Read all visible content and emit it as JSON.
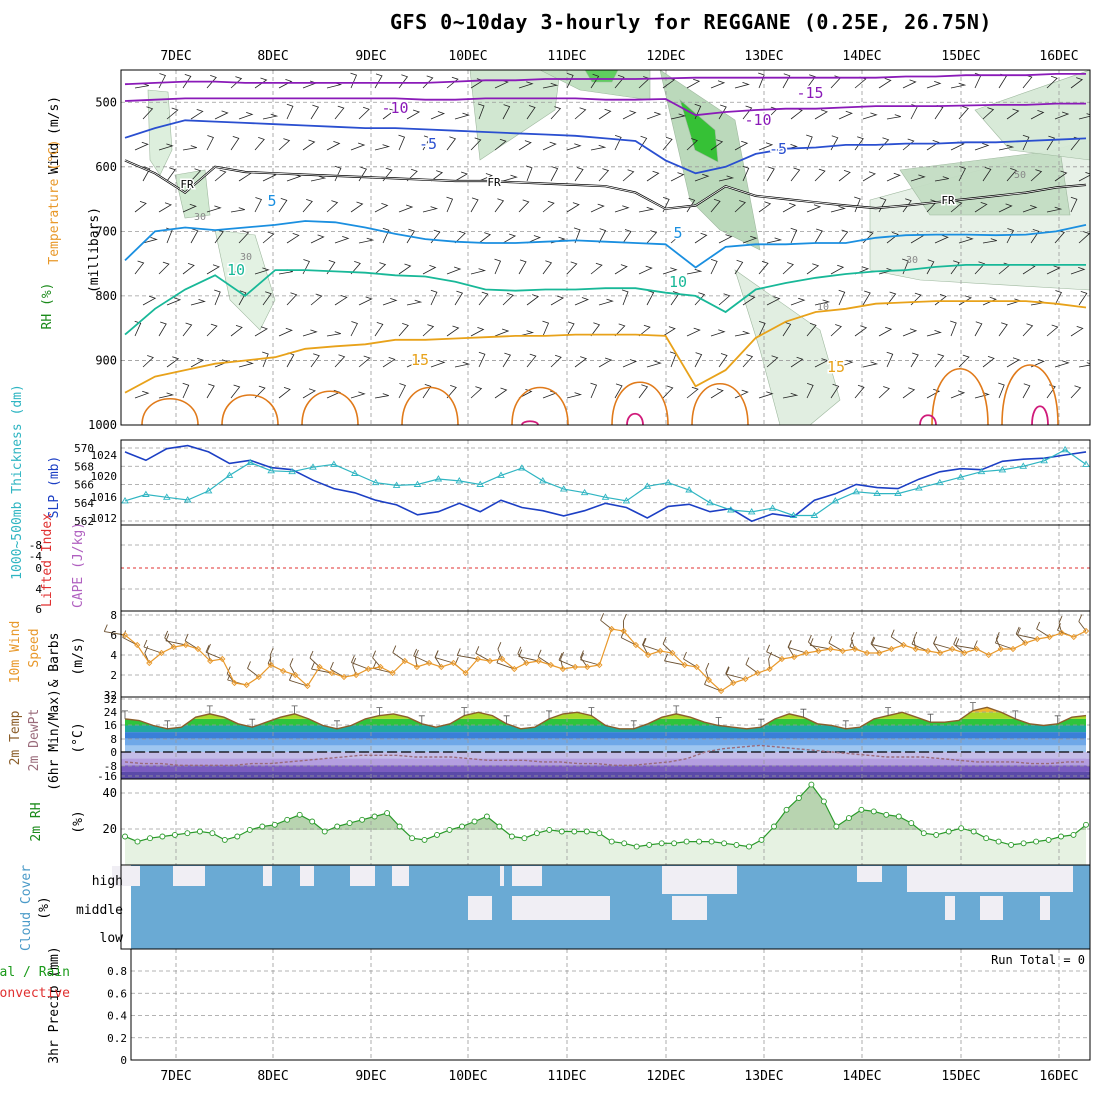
{
  "title": "GFS 0~10day 3-hourly for REGGANE (0.25E, 26.75N)",
  "dates": [
    "7DEC",
    "8DEC",
    "9DEC",
    "10DEC",
    "11DEC",
    "12DEC",
    "13DEC",
    "14DEC",
    "15DEC",
    "16DEC"
  ],
  "colors": {
    "slp": "#1c3fc4",
    "thick": "#2fb5c2",
    "wind": "#e8982a",
    "barb": "#6b5030",
    "t_warm": "#8b5e2a",
    "dewpt": "#9a6b7a",
    "rh": "#2a9a2a",
    "cloud": "#6aaad4",
    "cloud_gap": "#f0eef4",
    "frz": "#e03030"
  },
  "labels": {
    "p1_wind": "Wind (m/s)",
    "p1_temp": "Temperature (°C)",
    "p1_rh": "RH (%)",
    "p1_mb": "(millibars)",
    "p2_thick": "1000~500mb Thickness (dm)",
    "p2_slp": "SLP (mb)",
    "p3_li": "Lifted Index",
    "p3_cape": "CAPE (J/kg)",
    "p4_a": "10m Wind",
    "p4_b": "Speed",
    "p4_c": "& Barbs",
    "p4_unit": "(m/s)",
    "p5_a": "2m Temp",
    "p5_b": "2m DewPt",
    "p5_c": "(6hr Min/Max)",
    "p5_unit": "(°C)",
    "p6_a": "2m RH",
    "p6_unit": "(%)",
    "p7_a": "Cloud Cover",
    "p7_unit": "(%)",
    "p8_a": "3hr Precip (mm)",
    "p8_b": "Total / Rain",
    "p8_c": "Convective",
    "run_total": "Run Total = 0"
  },
  "chart_data": [
    {
      "type": "contour",
      "name": "upper-air-cross-section",
      "ylabel": "millibars",
      "y_ticks": [
        "500",
        "600",
        "700",
        "800",
        "900",
        "1000"
      ],
      "ylim": [
        450,
        1000
      ],
      "temperature_labels": [
        "-15",
        "-10",
        "-10",
        "-5",
        "-5",
        "FR",
        "FR",
        "FR",
        "5",
        "5",
        "10",
        "10",
        "15",
        "15"
      ],
      "rh_labels": [
        "30",
        "30",
        "30",
        "50",
        "10"
      ],
      "isotherms": [
        {
          "label": "-15",
          "p": [
            472,
            470,
            468,
            468,
            470,
            470,
            470,
            470,
            470,
            470,
            470,
            468,
            466,
            466,
            464,
            464,
            464,
            464,
            463,
            462,
            462,
            462,
            462,
            462,
            462,
            462,
            460,
            460,
            458,
            458,
            458,
            456,
            456
          ]
        },
        {
          "label": "-10",
          "p": [
            498,
            496,
            494,
            494,
            494,
            494,
            494,
            494,
            494,
            494,
            496,
            496,
            494,
            494,
            494,
            494,
            496,
            496,
            495,
            520,
            515,
            512,
            510,
            510,
            508,
            506,
            506,
            506,
            505,
            504,
            504,
            502,
            502
          ]
        },
        {
          "label": "-5",
          "p": [
            555,
            540,
            528,
            530,
            532,
            534,
            536,
            538,
            540,
            540,
            542,
            544,
            546,
            548,
            550,
            552,
            556,
            560,
            590,
            610,
            600,
            580,
            572,
            570,
            566,
            566,
            564,
            564,
            562,
            562,
            560,
            558,
            556
          ]
        },
        {
          "label": "FR",
          "p": [
            590,
            610,
            640,
            600,
            608,
            610,
            612,
            614,
            616,
            618,
            620,
            622,
            622,
            624,
            626,
            628,
            630,
            640,
            665,
            660,
            630,
            645,
            650,
            655,
            660,
            664,
            660,
            655,
            650,
            645,
            640,
            632,
            628
          ]
        },
        {
          "label": "5",
          "p": [
            745,
            700,
            694,
            698,
            694,
            690,
            684,
            686,
            694,
            704,
            712,
            716,
            718,
            718,
            716,
            714,
            716,
            718,
            720,
            756,
            724,
            720,
            720,
            718,
            718,
            710,
            706,
            705,
            705,
            706,
            705,
            700,
            690
          ]
        },
        {
          "label": "10",
          "p": [
            860,
            820,
            790,
            768,
            800,
            760,
            760,
            762,
            764,
            768,
            770,
            778,
            790,
            792,
            790,
            790,
            788,
            788,
            795,
            800,
            825,
            790,
            780,
            772,
            766,
            762,
            760,
            755,
            752,
            752,
            752,
            752,
            752
          ]
        },
        {
          "label": "15",
          "p": [
            950,
            925,
            915,
            905,
            900,
            895,
            882,
            878,
            875,
            868,
            868,
            866,
            864,
            862,
            862,
            860,
            860,
            860,
            862,
            940,
            915,
            865,
            840,
            825,
            820,
            812,
            810,
            808,
            808,
            808,
            808,
            812,
            818
          ]
        }
      ]
    },
    {
      "type": "line",
      "name": "slp-thickness",
      "y_ticks_left": [
        "570",
        "568",
        "566",
        "564",
        "562"
      ],
      "y_ticks_right": [
        "1024",
        "1020",
        "1016",
        "1012"
      ],
      "series": [
        {
          "name": "SLP (mb)",
          "values": [
            1024.6,
            1023.0,
            1025.2,
            1025.8,
            1024.6,
            1022.4,
            1023.0,
            1021.6,
            1021.2,
            1019.2,
            1017.6,
            1016.8,
            1015.4,
            1014.5,
            1012.6,
            1013.2,
            1014.8,
            1013.2,
            1015.4,
            1014.0,
            1013.4,
            1012.4,
            1013.4,
            1014.8,
            1014.0,
            1012.0,
            1014.2,
            1014.6,
            1013.2,
            1013.8,
            1011.4,
            1012.8,
            1012.2,
            1015.4,
            1016.6,
            1018.4,
            1017.8,
            1017.6,
            1019.4,
            1020.8,
            1021.4,
            1021.2,
            1022.8,
            1023.2,
            1023.4,
            1024.0,
            1024.6
          ]
        },
        {
          "name": "Thickness (dm)",
          "values": [
            564.2,
            564.9,
            564.6,
            564.3,
            565.3,
            567.0,
            568.4,
            567.5,
            567.4,
            567.9,
            568.2,
            567.2,
            566.2,
            565.9,
            566.0,
            566.6,
            566.4,
            566.0,
            567.0,
            567.8,
            566.4,
            565.5,
            565.1,
            564.6,
            564.2,
            565.8,
            566.2,
            565.4,
            564.0,
            563.2,
            563.0,
            563.4,
            562.6,
            562.6,
            564.2,
            565.2,
            565.0,
            565.0,
            565.6,
            566.2,
            566.8,
            567.4,
            567.6,
            568.0,
            568.6,
            569.8,
            568.2
          ]
        }
      ]
    },
    {
      "type": "line",
      "name": "lifted-index-cape",
      "y_ticks": [
        "-8",
        "-4",
        "0",
        "4",
        "6"
      ],
      "ylim": [
        -5,
        6
      ],
      "reference_value": 0
    },
    {
      "type": "line",
      "name": "10m-wind-speed",
      "y_ticks": [
        "8",
        "6",
        "4",
        "2",
        "32"
      ],
      "ylim": [
        0,
        8
      ],
      "series": [
        {
          "name": "Speed",
          "values": [
            6.0,
            5.0,
            3.2,
            4.2,
            4.8,
            5.0,
            4.6,
            3.4,
            3.6,
            1.2,
            1.0,
            1.8,
            3.0,
            2.4,
            2.0,
            0.9,
            2.8,
            2.2,
            1.8,
            2.0,
            2.6,
            2.8,
            2.2,
            3.4,
            2.8,
            3.2,
            2.8,
            3.2,
            2.2,
            3.6,
            3.4,
            3.6,
            2.6,
            3.2,
            3.4,
            3.0,
            2.6,
            2.8,
            2.8,
            3.0,
            6.6,
            6.4,
            5.0,
            4.0,
            4.4,
            4.2,
            3.0,
            2.8,
            1.5,
            0.4,
            1.2,
            1.6,
            2.2,
            2.6,
            3.6,
            3.8,
            4.2,
            4.4,
            4.6,
            4.4,
            4.6,
            4.2,
            4.2,
            4.6,
            5.0,
            4.6,
            4.4,
            4.2,
            4.6,
            4.2,
            4.6,
            4.0,
            4.6,
            4.6,
            5.2,
            5.6,
            5.8,
            6.2,
            5.8,
            6.4
          ]
        }
      ]
    },
    {
      "type": "area",
      "name": "2m-temp-dewpt",
      "y_ticks": [
        "32",
        "24",
        "16",
        "8",
        "0",
        "-8",
        "-16"
      ],
      "ylim": [
        -16,
        32
      ],
      "series": [
        {
          "name": "2m Temp",
          "values": [
            20,
            19,
            16,
            14,
            15,
            21,
            23,
            21,
            17,
            15,
            18,
            21,
            23,
            20,
            16,
            14,
            16,
            20,
            22,
            23,
            21,
            17,
            15,
            17,
            22,
            24,
            22,
            17,
            14,
            15,
            20,
            23,
            24,
            22,
            16,
            14,
            14,
            17,
            21,
            23,
            21,
            18,
            16,
            15,
            14,
            15,
            20,
            23,
            21,
            17,
            16,
            14,
            15,
            20,
            22,
            24,
            21,
            18,
            18,
            19,
            25,
            27,
            24,
            20,
            17,
            16,
            17,
            21,
            22
          ]
        },
        {
          "name": "2m DewPt",
          "values": [
            -6,
            -7,
            -7,
            -8,
            -8,
            -8,
            -8,
            -7,
            -7,
            -6,
            -5,
            -4,
            -3,
            -2,
            -2,
            -2,
            -3,
            -3,
            -3,
            -4,
            -5,
            -5,
            -5,
            -6,
            -6,
            -7,
            -7,
            -8,
            -8,
            -7,
            -6,
            -4,
            0,
            2,
            3,
            4,
            3,
            2,
            1,
            0,
            -1,
            -2,
            -3,
            -3,
            -3,
            -4,
            -5,
            -6,
            -6,
            -6,
            -7,
            -7,
            -6,
            -6
          ]
        }
      ]
    },
    {
      "type": "area",
      "name": "2m-rh",
      "y_ticks": [
        "40",
        "20"
      ],
      "ylim": [
        0,
        45
      ],
      "series": [
        {
          "name": "2m RH",
          "values": [
            14,
            11,
            13,
            14,
            15,
            16,
            17,
            16,
            12,
            14,
            18,
            20,
            21,
            24,
            27,
            23,
            17,
            20,
            22,
            24,
            26,
            28,
            20,
            13,
            12,
            15,
            18,
            20,
            23,
            26,
            20,
            14,
            13,
            16,
            18,
            17,
            17,
            17,
            16,
            11,
            10,
            8,
            9,
            10,
            10,
            11,
            11,
            11,
            10,
            9,
            8,
            12,
            20,
            30,
            37,
            45,
            35,
            20,
            25,
            30,
            29,
            27,
            26,
            22,
            16,
            15,
            17,
            19,
            17,
            13,
            11,
            9,
            10,
            11,
            12,
            14,
            15,
            21
          ]
        }
      ]
    },
    {
      "type": "heatmap",
      "name": "cloud-cover",
      "rows": [
        "high",
        "middle",
        "low"
      ],
      "high_clear_columns": [
        [
          112,
          140
        ],
        [
          173,
          205
        ],
        [
          263,
          272
        ],
        [
          300,
          314
        ],
        [
          350,
          375
        ],
        [
          392,
          409
        ],
        [
          500,
          504
        ],
        [
          512,
          542
        ],
        [
          662,
          737
        ],
        [
          857,
          882
        ],
        [
          907,
          1073
        ]
      ],
      "middle_clear_columns": [
        [
          468,
          492
        ],
        [
          512,
          610
        ],
        [
          672,
          707
        ],
        [
          945,
          955
        ],
        [
          980,
          1003
        ],
        [
          1040,
          1050
        ]
      ]
    },
    {
      "type": "bar",
      "name": "3hr-precip",
      "y_ticks": [
        "0.8",
        "0.6",
        "0.4",
        "0.2",
        "0"
      ],
      "ylim": [
        0,
        1
      ],
      "values": []
    }
  ]
}
